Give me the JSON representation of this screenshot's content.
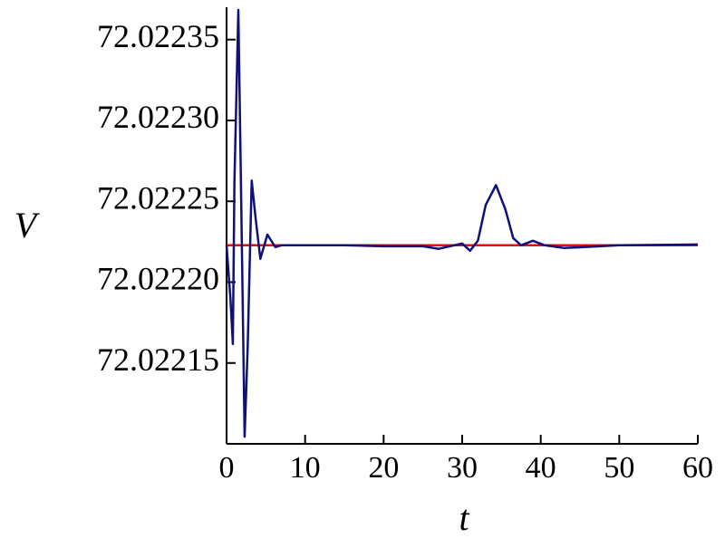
{
  "chart_data": {
    "type": "line",
    "xlabel": "t",
    "ylabel": "V",
    "x": [
      0,
      0.5,
      0.8,
      1.0,
      1.5,
      2.0,
      2.3,
      2.7,
      3.2,
      3.7,
      4.3,
      5.2,
      6.2,
      7,
      10,
      15,
      20,
      25,
      27,
      30,
      31,
      32,
      33,
      34.3,
      35.5,
      36.5,
      37.5,
      39,
      40.5,
      43,
      50,
      60
    ],
    "series": [
      {
        "color": "#10107a",
        "values": [
          72.0222228,
          72.0221894,
          72.0221617,
          72.0222617,
          72.0223683,
          72.0222061,
          72.0221044,
          72.0221617,
          72.0222628,
          72.0222394,
          72.0222144,
          72.0222294,
          72.0222217,
          72.0222228,
          72.0222228,
          72.0222228,
          72.0222222,
          72.0222222,
          72.0222206,
          72.0222239,
          72.0222194,
          72.0222256,
          72.0222478,
          72.02226,
          72.022245,
          72.0222272,
          72.0222228,
          72.0222256,
          72.0222228,
          72.0222211,
          72.0222228,
          72.0222233
        ]
      },
      {
        "color": "#e01010",
        "values": [
          72.0222228,
          72.0222228,
          72.0222228,
          72.0222228,
          72.0222228,
          72.0222228,
          72.0222228,
          72.0222228,
          72.0222228,
          72.0222228,
          72.0222228,
          72.0222228,
          72.0222228,
          72.0222228,
          72.0222228,
          72.0222228,
          72.0222228,
          72.0222228,
          72.0222228,
          72.0222228,
          72.0222228,
          72.0222228,
          72.0222228,
          72.0222228,
          72.0222228,
          72.0222228,
          72.0222228,
          72.0222228,
          72.0222228,
          72.0222228,
          72.0222228,
          72.0222228
        ]
      }
    ],
    "xlim": [
      0,
      60
    ],
    "xticks": [
      0,
      10,
      20,
      30,
      40,
      50,
      60
    ],
    "ylim": [
      72.0221,
      72.02237
    ],
    "yticks": [
      72.02215,
      {
        "value": 72.0222,
        "label": "72.02220"
      },
      72.02225,
      {
        "value": 72.0223,
        "label": "72.02230"
      },
      72.02235
    ]
  }
}
